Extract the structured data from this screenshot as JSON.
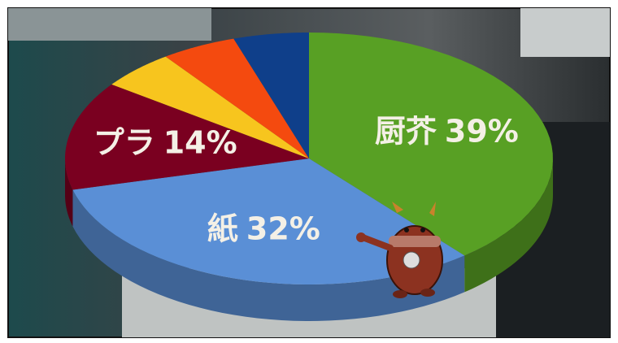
{
  "chart_data": {
    "type": "pie3d",
    "categories": [
      "厨芥",
      "紙",
      "プラ",
      null,
      null,
      null
    ],
    "values": [
      39,
      32,
      14,
      5,
      5,
      5
    ],
    "value_labels": [
      "39%",
      "32%",
      "14%",
      null,
      null,
      null
    ],
    "colors": [
      "#58a024",
      "#5a8fd6",
      "#7a0020",
      "#f7c51e",
      "#f44a0f",
      "#0f3f8a"
    ]
  }
}
